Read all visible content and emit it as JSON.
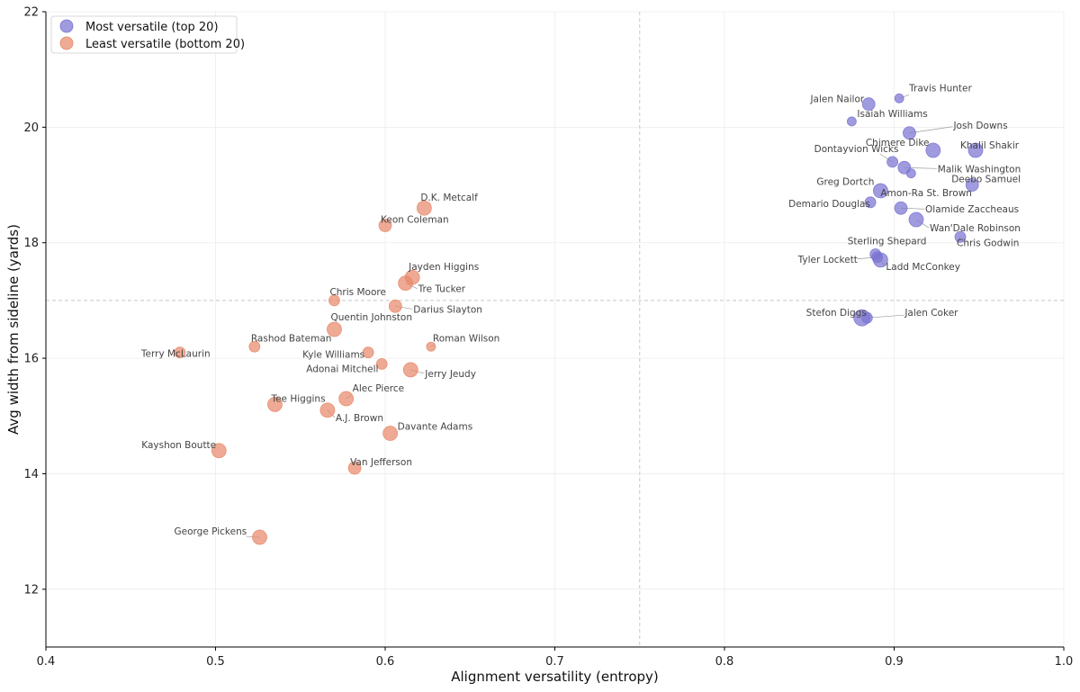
{
  "chart_data": {
    "type": "scatter",
    "title": "",
    "xlabel": "Alignment versatility (entropy)",
    "ylabel": "Avg width from sideline (yards)",
    "xlim": [
      0.4,
      1.0
    ],
    "ylim": [
      11,
      22
    ],
    "xticks": [
      0.4,
      0.5,
      0.6,
      0.7,
      0.8,
      0.9,
      1.0
    ],
    "xtick_labels": [
      "0.4",
      "0.5",
      "0.6",
      "0.7",
      "0.8",
      "0.9",
      "1.0"
    ],
    "yticks": [
      12,
      14,
      16,
      18,
      20,
      22
    ],
    "ytick_labels": [
      "12",
      "14",
      "16",
      "18",
      "20",
      "22"
    ],
    "grid": true,
    "reference_lines": {
      "x": 0.75,
      "y": 17
    },
    "legend_position": "top-left",
    "colors": {
      "most": "#7b74d1",
      "least": "#e8896b"
    },
    "series": [
      {
        "name": "Most versatile (top 20)",
        "key": "most",
        "points": [
          {
            "label": "Travis Hunter",
            "x": 0.903,
            "y": 20.5,
            "size": 5
          },
          {
            "label": "Jalen Nailor",
            "x": 0.885,
            "y": 20.4,
            "size": 7
          },
          {
            "label": "Isaiah Williams",
            "x": 0.875,
            "y": 20.1,
            "size": 5
          },
          {
            "label": "Josh Downs",
            "x": 0.909,
            "y": 19.9,
            "size": 7
          },
          {
            "label": "Khalil Shakir",
            "x": 0.948,
            "y": 19.6,
            "size": 8
          },
          {
            "label": "Chimere Dike",
            "x": 0.923,
            "y": 19.6,
            "size": 8
          },
          {
            "label": "Dontayvion Wicks",
            "x": 0.899,
            "y": 19.4,
            "size": 6
          },
          {
            "label": "Malik Washington",
            "x": 0.906,
            "y": 19.3,
            "size": 7
          },
          {
            "label": "Greg Dortch",
            "x": 0.91,
            "y": 19.2,
            "size": 5
          },
          {
            "label": "Deebo Samuel",
            "x": 0.946,
            "y": 19.0,
            "size": 7
          },
          {
            "label": "Amon-Ra St. Brown",
            "x": 0.892,
            "y": 18.9,
            "size": 8
          },
          {
            "label": "Demario Douglas",
            "x": 0.886,
            "y": 18.7,
            "size": 6
          },
          {
            "label": "Olamide Zaccheaus",
            "x": 0.904,
            "y": 18.6,
            "size": 7
          },
          {
            "label": "Wan'Dale Robinson",
            "x": 0.913,
            "y": 18.4,
            "size": 8
          },
          {
            "label": "Chris Godwin",
            "x": 0.939,
            "y": 18.1,
            "size": 6
          },
          {
            "label": "Sterling Shepard",
            "x": 0.889,
            "y": 17.8,
            "size": 6
          },
          {
            "label": "Tyler Lockett",
            "x": 0.89,
            "y": 17.75,
            "size": 6
          },
          {
            "label": "Ladd McConkey",
            "x": 0.892,
            "y": 17.7,
            "size": 8
          },
          {
            "label": "Stefon Diggs",
            "x": 0.881,
            "y": 16.7,
            "size": 9
          },
          {
            "label": "Jalen Coker",
            "x": 0.884,
            "y": 16.7,
            "size": 6
          }
        ]
      },
      {
        "name": "Least versatile (bottom 20)",
        "key": "least",
        "points": [
          {
            "label": "D.K. Metcalf",
            "x": 0.623,
            "y": 18.6,
            "size": 8
          },
          {
            "label": "Keon Coleman",
            "x": 0.6,
            "y": 18.3,
            "size": 7
          },
          {
            "label": "Jayden Higgins",
            "x": 0.616,
            "y": 17.4,
            "size": 8
          },
          {
            "label": "Tre Tucker",
            "x": 0.612,
            "y": 17.3,
            "size": 8
          },
          {
            "label": "Chris Moore",
            "x": 0.57,
            "y": 17.0,
            "size": 6
          },
          {
            "label": "Darius Slayton",
            "x": 0.606,
            "y": 16.9,
            "size": 7
          },
          {
            "label": "Quentin Johnston",
            "x": 0.57,
            "y": 16.5,
            "size": 8
          },
          {
            "label": "Rashod Bateman",
            "x": 0.523,
            "y": 16.2,
            "size": 6
          },
          {
            "label": "Roman Wilson",
            "x": 0.627,
            "y": 16.2,
            "size": 5
          },
          {
            "label": "Terry McLaurin",
            "x": 0.479,
            "y": 16.1,
            "size": 6
          },
          {
            "label": "Kyle Williams",
            "x": 0.59,
            "y": 16.1,
            "size": 6
          },
          {
            "label": "Adonai Mitchell",
            "x": 0.598,
            "y": 15.9,
            "size": 6
          },
          {
            "label": "Jerry Jeudy",
            "x": 0.615,
            "y": 15.8,
            "size": 8
          },
          {
            "label": "Alec Pierce",
            "x": 0.577,
            "y": 15.3,
            "size": 8
          },
          {
            "label": "Tee Higgins",
            "x": 0.535,
            "y": 15.2,
            "size": 8
          },
          {
            "label": "A.J. Brown",
            "x": 0.566,
            "y": 15.1,
            "size": 8
          },
          {
            "label": "Davante Adams",
            "x": 0.603,
            "y": 14.7,
            "size": 8
          },
          {
            "label": "Kayshon Boutte",
            "x": 0.502,
            "y": 14.4,
            "size": 8
          },
          {
            "label": "Van Jefferson",
            "x": 0.582,
            "y": 14.1,
            "size": 7
          },
          {
            "label": "George Pickens",
            "x": 0.526,
            "y": 12.9,
            "size": 8
          }
        ]
      }
    ]
  }
}
